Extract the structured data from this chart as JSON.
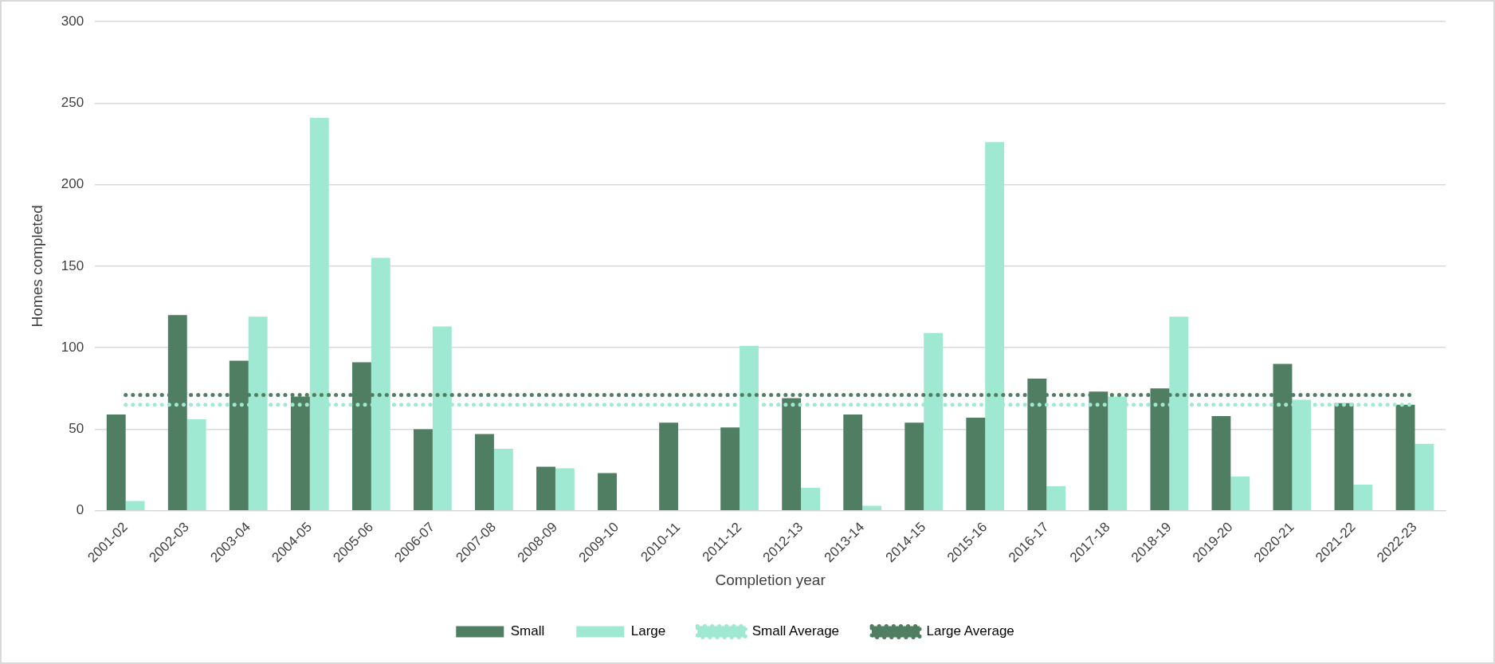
{
  "chart_data": {
    "type": "bar",
    "xlabel": "Completion year",
    "ylabel": "Homes completed",
    "categories": [
      "2001-02",
      "2002-03",
      "2003-04",
      "2004-05",
      "2005-06",
      "2006-07",
      "2007-08",
      "2008-09",
      "2009-10",
      "2010-11",
      "2011-12",
      "2012-13",
      "2013-14",
      "2014-15",
      "2015-16",
      "2016-17",
      "2017-18",
      "2018-19",
      "2019-20",
      "2020-21",
      "2021-22",
      "2022-23"
    ],
    "series": [
      {
        "name": "Small",
        "color": "#507e62",
        "values": [
          59,
          120,
          92,
          70,
          91,
          50,
          47,
          27,
          23,
          54,
          51,
          69,
          59,
          54,
          57,
          81,
          73,
          75,
          58,
          90,
          66,
          65
        ]
      },
      {
        "name": "Large",
        "color": "#9fe9d2",
        "values": [
          6,
          56,
          119,
          241,
          155,
          113,
          38,
          26,
          0,
          0,
          101,
          14,
          3,
          109,
          226,
          15,
          70,
          119,
          21,
          68,
          16,
          41
        ]
      },
      {
        "name": "Small Average",
        "type": "line",
        "line_style": "dotted",
        "marker": "none",
        "color": "#9fe9d2",
        "values": [
          65,
          65,
          65,
          65,
          65,
          65,
          65,
          65,
          65,
          65,
          65,
          65,
          65,
          65,
          65,
          65,
          65,
          65,
          65,
          65,
          65,
          65
        ]
      },
      {
        "name": "Large Average",
        "type": "line",
        "line_style": "dotted",
        "marker": "none",
        "color": "#507e62",
        "values": [
          71,
          71,
          71,
          71,
          71,
          71,
          71,
          71,
          71,
          71,
          71,
          71,
          71,
          71,
          71,
          71,
          71,
          71,
          71,
          71,
          71,
          71
        ]
      }
    ],
    "ylim": [
      0,
      300
    ],
    "yticks": [
      0,
      50,
      100,
      150,
      200,
      250,
      300
    ],
    "grid": "y",
    "legend": "bottom"
  }
}
